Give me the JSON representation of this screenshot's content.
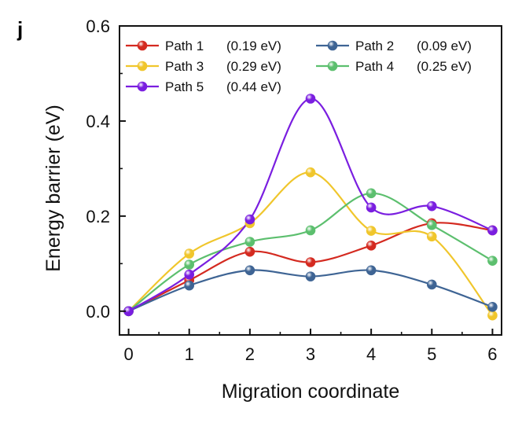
{
  "panel_label": "j",
  "chart_data": {
    "type": "line",
    "xlabel": "Migration coordinate",
    "ylabel": "Energy barrier (eV)",
    "xlim": [
      -0.15,
      6.15
    ],
    "ylim": [
      -0.05,
      0.6
    ],
    "x_ticks": [
      "0",
      "1",
      "2",
      "3",
      "4",
      "5",
      "6"
    ],
    "y_ticks": [
      "0.0",
      "0.2",
      "0.4",
      "0.6"
    ],
    "legend_position": "top-left",
    "x": [
      0,
      1,
      2,
      3,
      4,
      5,
      6
    ],
    "series": [
      {
        "name": "Path 1",
        "barrier": "(0.19 eV)",
        "color": "#d42a20",
        "values": [
          0.0,
          0.065,
          0.125,
          0.103,
          0.138,
          0.185,
          0.17
        ]
      },
      {
        "name": "Path 2",
        "barrier": "(0.09 eV)",
        "color": "#3e6494",
        "values": [
          0.0,
          0.054,
          0.086,
          0.073,
          0.086,
          0.056,
          0.009
        ]
      },
      {
        "name": "Path 3",
        "barrier": "(0.29 eV)",
        "color": "#f0c62c",
        "values": [
          0.0,
          0.121,
          0.185,
          0.292,
          0.169,
          0.157,
          -0.009
        ]
      },
      {
        "name": "Path 4",
        "barrier": "(0.25 eV)",
        "color": "#5cbf6e",
        "values": [
          0.0,
          0.098,
          0.146,
          0.17,
          0.248,
          0.181,
          0.106
        ]
      },
      {
        "name": "Path 5",
        "barrier": "(0.44 eV)",
        "color": "#7a1ee0",
        "values": [
          0.0,
          0.077,
          0.193,
          0.447,
          0.218,
          0.221,
          0.17
        ]
      }
    ]
  }
}
